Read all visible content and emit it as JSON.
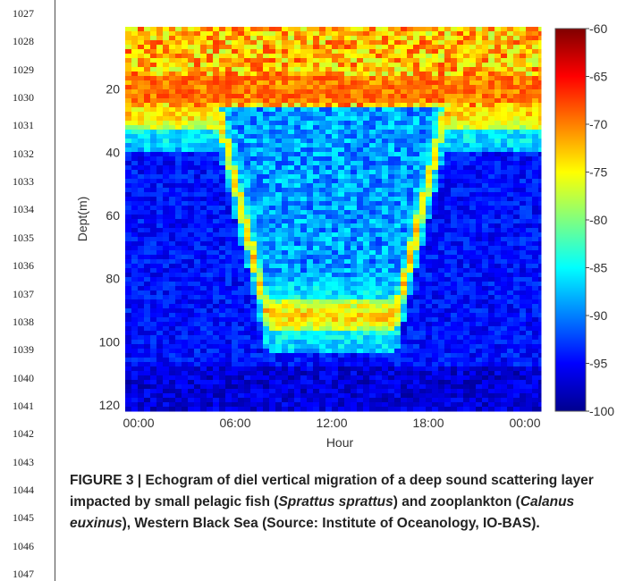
{
  "page": {
    "line_numbers": [
      "1027",
      "1028",
      "1029",
      "1030",
      "1031",
      "1032",
      "1033",
      "1034",
      "1035",
      "1036",
      "1037",
      "1038",
      "1039",
      "1040",
      "1041",
      "1042",
      "1043",
      "1044",
      "1045",
      "1046",
      "1047"
    ]
  },
  "figure": {
    "caption": {
      "label": "FIGURE 3 |",
      "part1": "Echogram of diel vertical migration of a deep sound scattering layer impacted by small pelagic fish (",
      "species1": "Sprattus sprattus",
      "part2": ") and zooplankton (",
      "species2": "Calanus euxinus",
      "part3": "), Western Black Sea (Source: Institute of Oceanology, IO-BAS)."
    }
  },
  "chart_data": {
    "type": "heatmap",
    "xlabel": "Hour",
    "ylabel": "Dept(m)",
    "x_ticks": [
      "00:00",
      "06:00",
      "12:00",
      "18:00",
      "00:00"
    ],
    "x_tick_hours": [
      0,
      6,
      12,
      18,
      24
    ],
    "xlim_hours": [
      0,
      24
    ],
    "y_ticks": [
      20,
      40,
      60,
      80,
      100,
      120
    ],
    "ylim": [
      0,
      120
    ],
    "y_inverted": true,
    "colorbar": {
      "ticks": [
        -60,
        -65,
        -70,
        -75,
        -80,
        -85,
        -90,
        -95,
        -100
      ],
      "tick_labels": [
        "-60",
        "-65",
        "-70",
        "-75",
        "-80",
        "-85",
        "-90",
        "-95",
        "-100"
      ],
      "range": [
        -100,
        -60
      ],
      "colormap": "jet"
    },
    "features": {
      "surface_layer_depth_m": [
        0,
        26
      ],
      "scattering_layer_day_depth_m": 92,
      "scattering_layer_night_depth_m": 28,
      "descent_hours": [
        5.0,
        8.0
      ],
      "ascent_hours": [
        16.0,
        19.0
      ]
    },
    "colors": {
      "jet_low": "#00008f",
      "jet_high": "#800000"
    }
  }
}
